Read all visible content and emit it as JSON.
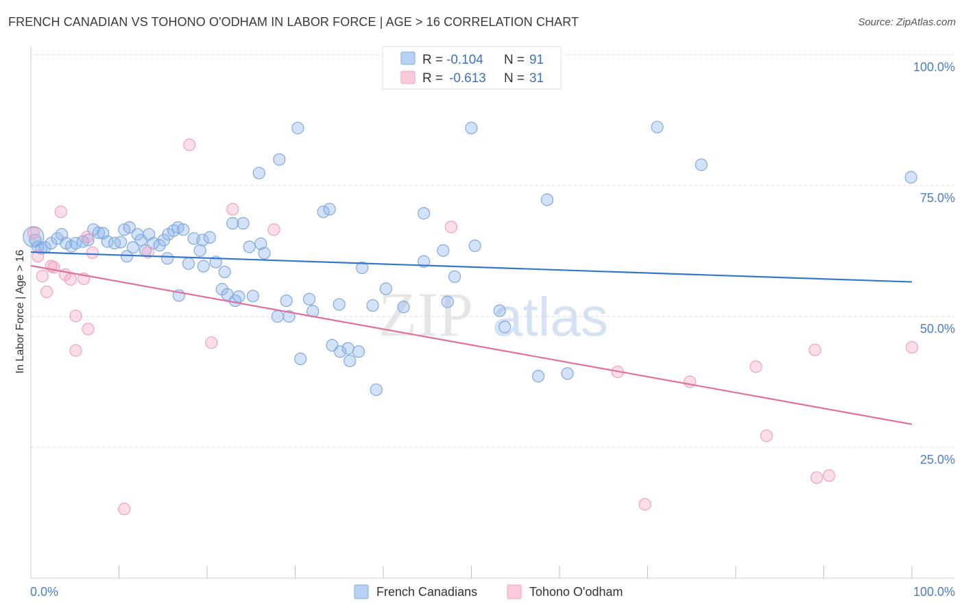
{
  "title": "FRENCH CANADIAN VS TOHONO O'ODHAM IN LABOR FORCE | AGE > 16 CORRELATION CHART",
  "source": "Source: ZipAtlas.com",
  "colors": {
    "blue": "#6fa3e0",
    "pink": "#f08fb0",
    "blue_line": "#3375cf",
    "pink_line": "#e0709a",
    "tick_text": "#4a7cc7"
  },
  "legend": {
    "rows": [
      {
        "r_label": "R =",
        "r_value": "-0.104",
        "n_label": "N =",
        "n_value": "91"
      },
      {
        "r_label": "R =",
        "r_value": "-0.613",
        "n_label": "N =",
        "n_value": "31"
      }
    ]
  },
  "bottom_legend": {
    "blue": "French Canadians",
    "pink": "Tohono O'odham"
  },
  "watermark": {
    "left": "ZIP",
    "right": "atlas"
  },
  "chart_data": {
    "type": "scatter",
    "ylabel": "In Labor Force | Age > 16",
    "xlim": [
      0,
      100
    ],
    "ylim": [
      0,
      100
    ],
    "x_tick_labels": [
      "0.0%",
      "100.0%"
    ],
    "y_tick_labels": [
      "100.0%",
      "75.0%",
      "50.0%",
      "25.0%"
    ],
    "y_ticks": [
      100,
      75,
      50,
      25
    ],
    "grid": "dashed horizontal",
    "series": [
      {
        "name": "French Canadians",
        "color": "#6fa3e0",
        "trend": {
          "x": [
            0,
            100
          ],
          "y": [
            62.3,
            56.6
          ]
        },
        "points": [
          [
            0.3,
            65.2
          ],
          [
            0.5,
            64.6
          ],
          [
            0.8,
            63.3
          ],
          [
            1.2,
            63.0
          ],
          [
            1.6,
            63.2
          ],
          [
            2.3,
            64.0
          ],
          [
            3.0,
            64.9
          ],
          [
            3.5,
            65.7
          ],
          [
            4.0,
            64.0
          ],
          [
            4.6,
            63.4
          ],
          [
            5.1,
            64.0
          ],
          [
            5.9,
            64.3
          ],
          [
            6.5,
            64.6
          ],
          [
            7.1,
            66.6
          ],
          [
            7.7,
            66.0
          ],
          [
            8.2,
            65.9
          ],
          [
            8.7,
            64.3
          ],
          [
            9.5,
            64.0
          ],
          [
            10.2,
            64.2
          ],
          [
            10.6,
            66.6
          ],
          [
            10.9,
            61.5
          ],
          [
            11.2,
            67.0
          ],
          [
            11.6,
            63.2
          ],
          [
            12.1,
            65.7
          ],
          [
            12.5,
            64.6
          ],
          [
            13.0,
            62.6
          ],
          [
            13.4,
            65.7
          ],
          [
            13.9,
            64.0
          ],
          [
            14.6,
            63.6
          ],
          [
            15.1,
            64.6
          ],
          [
            15.6,
            65.7
          ],
          [
            15.5,
            61.1
          ],
          [
            16.2,
            66.4
          ],
          [
            16.7,
            67.0
          ],
          [
            17.3,
            66.6
          ],
          [
            16.8,
            54.0
          ],
          [
            17.9,
            60.1
          ],
          [
            18.5,
            64.9
          ],
          [
            19.2,
            62.6
          ],
          [
            19.5,
            64.6
          ],
          [
            19.6,
            59.6
          ],
          [
            20.3,
            65.1
          ],
          [
            21.0,
            60.4
          ],
          [
            21.7,
            55.2
          ],
          [
            22.0,
            58.5
          ],
          [
            22.3,
            54.2
          ],
          [
            22.9,
            67.8
          ],
          [
            23.2,
            53.0
          ],
          [
            23.6,
            53.8
          ],
          [
            24.1,
            67.8
          ],
          [
            24.8,
            63.3
          ],
          [
            25.2,
            53.9
          ],
          [
            26.1,
            63.9
          ],
          [
            26.5,
            62.1
          ],
          [
            25.9,
            77.4
          ],
          [
            28.0,
            50.0
          ],
          [
            28.2,
            80.0
          ],
          [
            29.0,
            53.0
          ],
          [
            29.3,
            50.0
          ],
          [
            30.3,
            86.0
          ],
          [
            30.6,
            41.9
          ],
          [
            31.6,
            53.3
          ],
          [
            32.0,
            51.0
          ],
          [
            33.2,
            70.0
          ],
          [
            33.9,
            70.5
          ],
          [
            34.2,
            44.5
          ],
          [
            35.0,
            52.3
          ],
          [
            35.1,
            43.3
          ],
          [
            36.0,
            43.9
          ],
          [
            36.2,
            41.5
          ],
          [
            37.2,
            43.3
          ],
          [
            37.6,
            59.3
          ],
          [
            38.8,
            52.1
          ],
          [
            39.2,
            36.0
          ],
          [
            40.3,
            55.3
          ],
          [
            42.3,
            51.8
          ],
          [
            44.6,
            60.5
          ],
          [
            44.6,
            69.7
          ],
          [
            46.8,
            62.6
          ],
          [
            47.3,
            52.8
          ],
          [
            48.1,
            57.6
          ],
          [
            50.0,
            86.0
          ],
          [
            50.4,
            63.5
          ],
          [
            53.2,
            51.1
          ],
          [
            53.8,
            48.0
          ],
          [
            57.6,
            38.6
          ],
          [
            58.6,
            72.3
          ],
          [
            60.9,
            39.1
          ],
          [
            71.1,
            86.2
          ],
          [
            76.1,
            79.0
          ],
          [
            99.9,
            76.6
          ]
        ]
      },
      {
        "name": "Tohono O'odham",
        "color": "#f08fb0",
        "trend": {
          "x": [
            0,
            100
          ],
          "y": [
            59.7,
            29.4
          ]
        },
        "points": [
          [
            0.3,
            65.9
          ],
          [
            0.8,
            61.5
          ],
          [
            1.3,
            57.7
          ],
          [
            1.8,
            54.7
          ],
          [
            2.3,
            59.6
          ],
          [
            2.6,
            59.4
          ],
          [
            3.4,
            70.0
          ],
          [
            3.9,
            58.0
          ],
          [
            4.5,
            57.1
          ],
          [
            5.1,
            50.1
          ],
          [
            5.1,
            43.5
          ],
          [
            6.0,
            57.2
          ],
          [
            6.5,
            47.6
          ],
          [
            6.4,
            65.2
          ],
          [
            7.0,
            62.2
          ],
          [
            10.6,
            13.2
          ],
          [
            13.3,
            62.3
          ],
          [
            18.0,
            82.8
          ],
          [
            20.5,
            45.0
          ],
          [
            22.9,
            70.5
          ],
          [
            27.6,
            66.6
          ],
          [
            47.7,
            67.1
          ],
          [
            66.6,
            39.4
          ],
          [
            69.7,
            14.1
          ],
          [
            74.8,
            37.5
          ],
          [
            82.3,
            40.4
          ],
          [
            83.5,
            27.2
          ],
          [
            89.0,
            43.6
          ],
          [
            89.2,
            19.2
          ],
          [
            90.6,
            19.6
          ],
          [
            100.0,
            44.1
          ]
        ]
      }
    ]
  }
}
